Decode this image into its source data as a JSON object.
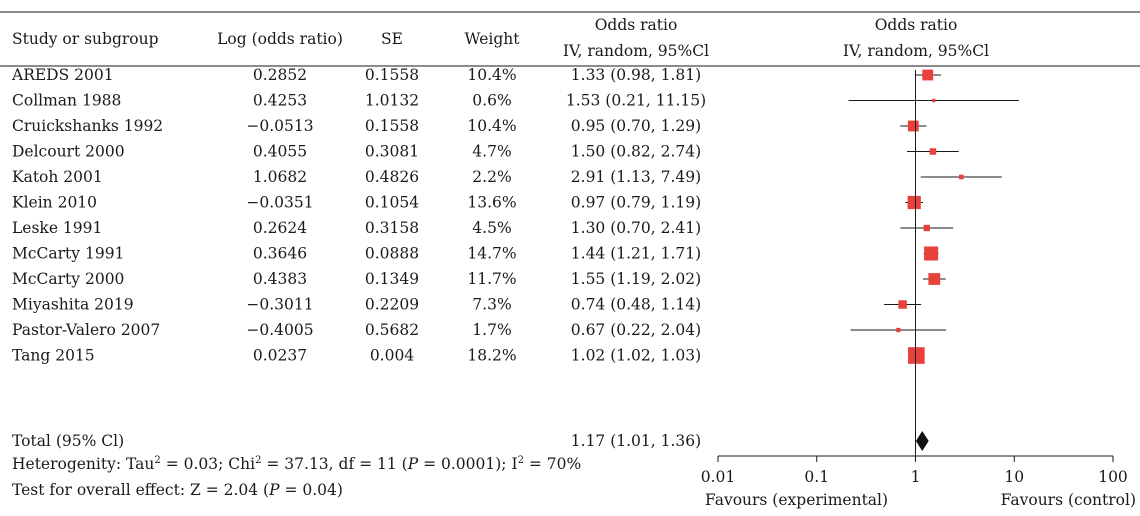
{
  "chart_data": {
    "type": "forest",
    "headers": {
      "study": "Study or subgroup",
      "log_or": "Log (odds ratio)",
      "se": "SE",
      "weight": "Weight",
      "or_line1": "Odds ratio",
      "or_line2": "IV, random, 95%Cl",
      "plot_line1": "Odds ratio",
      "plot_line2": "IV, random, 95%Cl"
    },
    "studies": [
      {
        "name": "AREDS 2001",
        "log_or": "0.2852",
        "se": "0.1558",
        "weight": "10.4%",
        "ci_text": "1.33 (0.98, 1.81)",
        "or": 1.33,
        "lo": 0.98,
        "hi": 1.81,
        "w": 10.4
      },
      {
        "name": "Collman 1988",
        "log_or": "0.4253",
        "se": "1.0132",
        "weight": "0.6%",
        "ci_text": "1.53 (0.21, 11.15)",
        "or": 1.53,
        "lo": 0.21,
        "hi": 11.15,
        "w": 0.6
      },
      {
        "name": "Cruickshanks 1992",
        "log_or": "−0.0513",
        "se": "0.1558",
        "weight": "10.4%",
        "ci_text": "0.95 (0.70, 1.29)",
        "or": 0.95,
        "lo": 0.7,
        "hi": 1.29,
        "w": 10.4
      },
      {
        "name": "Delcourt 2000",
        "log_or": "0.4055",
        "se": "0.3081",
        "weight": "4.7%",
        "ci_text": "1.50 (0.82, 2.74)",
        "or": 1.5,
        "lo": 0.82,
        "hi": 2.74,
        "w": 4.7
      },
      {
        "name": "Katoh 2001",
        "log_or": "1.0682",
        "se": "0.4826",
        "weight": "2.2%",
        "ci_text": "2.91 (1.13, 7.49)",
        "or": 2.91,
        "lo": 1.13,
        "hi": 7.49,
        "w": 2.2
      },
      {
        "name": "Klein 2010",
        "log_or": "−0.0351",
        "se": "0.1054",
        "weight": "13.6%",
        "ci_text": "0.97 (0.79, 1.19)",
        "or": 0.97,
        "lo": 0.79,
        "hi": 1.19,
        "w": 13.6
      },
      {
        "name": "Leske 1991",
        "log_or": "0.2624",
        "se": "0.3158",
        "weight": "4.5%",
        "ci_text": "1.30 (0.70, 2.41)",
        "or": 1.3,
        "lo": 0.7,
        "hi": 2.41,
        "w": 4.5
      },
      {
        "name": "McCarty 1991",
        "log_or": "0.3646",
        "se": "0.0888",
        "weight": "14.7%",
        "ci_text": "1.44 (1.21, 1.71)",
        "or": 1.44,
        "lo": 1.21,
        "hi": 1.71,
        "w": 14.7
      },
      {
        "name": "McCarty 2000",
        "log_or": "0.4383",
        "se": "0.1349",
        "weight": "11.7%",
        "ci_text": "1.55 (1.19, 2.02)",
        "or": 1.55,
        "lo": 1.19,
        "hi": 2.02,
        "w": 11.7
      },
      {
        "name": "Miyashita 2019",
        "log_or": "−0.3011",
        "se": "0.2209",
        "weight": "7.3%",
        "ci_text": "0.74 (0.48, 1.14)",
        "or": 0.74,
        "lo": 0.48,
        "hi": 1.14,
        "w": 7.3
      },
      {
        "name": "Pastor-Valero 2007",
        "log_or": "−0.4005",
        "se": "0.5682",
        "weight": "1.7%",
        "ci_text": "0.67 (0.22, 2.04)",
        "or": 0.67,
        "lo": 0.22,
        "hi": 2.04,
        "w": 1.7
      },
      {
        "name": "Tang 2015",
        "log_or": "0.0237",
        "se": "0.004",
        "weight": "18.2%",
        "ci_text": "1.02 (1.02, 1.03)",
        "or": 1.02,
        "lo": 1.02,
        "hi": 1.03,
        "w": 18.2
      }
    ],
    "total": {
      "name": "Total (95% Cl)",
      "ci_text": "1.17 (1.01, 1.36)",
      "or": 1.17,
      "lo": 1.01,
      "hi": 1.36
    },
    "heterogeneity": {
      "prefix": "Heterogenity: Tau",
      "tau2": "= 0.03; Chi",
      "chi2": "= 37.13, df = 11 (",
      "p_label": "P",
      "p_value": "= 0.0001); I",
      "i2": "= 70%"
    },
    "overall_effect": {
      "prefix": "Test for overall effect: Z = 2.04 (",
      "p_label": "P",
      "p_value": "= 0.04)"
    },
    "x_axis": {
      "scale": "log",
      "ticks": [
        {
          "value": 0.01,
          "label": "0.01"
        },
        {
          "value": 0.1,
          "label": "0.1"
        },
        {
          "value": 1,
          "label": "1"
        },
        {
          "value": 10,
          "label": "10"
        },
        {
          "value": 100,
          "label": "100"
        }
      ],
      "xlim": [
        0.01,
        100
      ],
      "favours_left": "Favours (experimental)",
      "favours_right": "Favours (control)"
    },
    "colors": {
      "marker": "#e8403a",
      "diamond": "#111111",
      "line": "#1a1a1a"
    }
  }
}
